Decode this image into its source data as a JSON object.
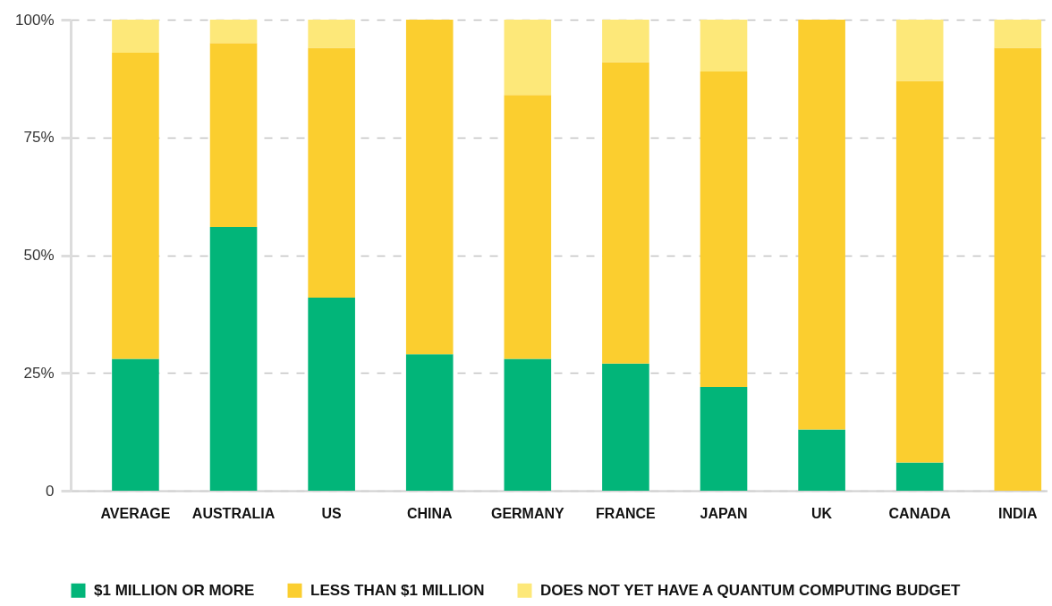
{
  "chart_data": {
    "type": "bar",
    "stacked": true,
    "categories": [
      "AVERAGE",
      "AUSTRALIA",
      "US",
      "CHINA",
      "GERMANY",
      "FRANCE",
      "JAPAN",
      "UK",
      "CANADA",
      "INDIA"
    ],
    "series": [
      {
        "name": "$1 MILLION OR MORE",
        "color": "#02b579",
        "values": [
          28,
          56,
          41,
          29,
          28,
          27,
          22,
          13,
          6,
          0
        ]
      },
      {
        "name": "LESS THAN $1 MILLION",
        "color": "#fbce2f",
        "values": [
          65,
          39,
          53,
          71,
          56,
          64,
          67,
          87,
          81,
          94
        ]
      },
      {
        "name": "DOES NOT YET HAVE A QUANTUM COMPUTING BUDGET",
        "color": "#fde879",
        "values": [
          7,
          5,
          6,
          0,
          16,
          9,
          11,
          0,
          13,
          6
        ]
      }
    ],
    "ylim": [
      0,
      100
    ],
    "yticks": [
      0,
      {
        "value": 25,
        "label": "25%"
      },
      {
        "value": 50,
        "label": "50%"
      },
      {
        "value": 75,
        "label": "75%"
      },
      {
        "value": 100,
        "label": "100%"
      }
    ],
    "grid": "y",
    "legend": "bottom"
  }
}
